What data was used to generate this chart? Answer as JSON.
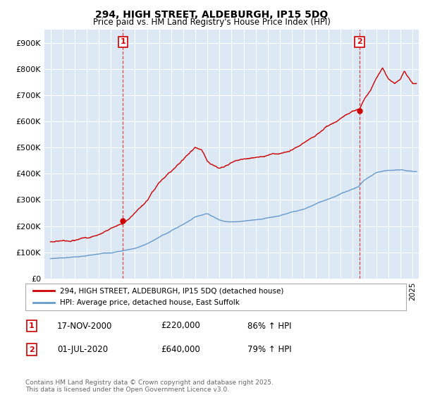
{
  "title": "294, HIGH STREET, ALDEBURGH, IP15 5DQ",
  "subtitle": "Price paid vs. HM Land Registry's House Price Index (HPI)",
  "ylim": [
    0,
    950000
  ],
  "yticks": [
    0,
    100000,
    200000,
    300000,
    400000,
    500000,
    600000,
    700000,
    800000,
    900000
  ],
  "ytick_labels": [
    "£0",
    "£100K",
    "£200K",
    "£300K",
    "£400K",
    "£500K",
    "£600K",
    "£700K",
    "£800K",
    "£900K"
  ],
  "red_color": "#cc0000",
  "blue_color": "#6699cc",
  "chart_bg_color": "#dce9f5",
  "background_color": "#ffffff",
  "grid_color": "#ffffff",
  "legend_label_red": "294, HIGH STREET, ALDEBURGH, IP15 5DQ (detached house)",
  "legend_label_blue": "HPI: Average price, detached house, East Suffolk",
  "sale1_label": "1",
  "sale1_date": "17-NOV-2000",
  "sale1_price": "£220,000",
  "sale1_hpi": "86% ↑ HPI",
  "sale2_label": "2",
  "sale2_date": "01-JUL-2020",
  "sale2_price": "£640,000",
  "sale2_hpi": "79% ↑ HPI",
  "footer": "Contains HM Land Registry data © Crown copyright and database right 2025.\nThis data is licensed under the Open Government Licence v3.0.",
  "sale1_x": 2001.0,
  "sale2_x": 2020.6,
  "sale1_y": 220000,
  "sale2_y": 640000,
  "xlim_left": 1994.5,
  "xlim_right": 2025.5
}
